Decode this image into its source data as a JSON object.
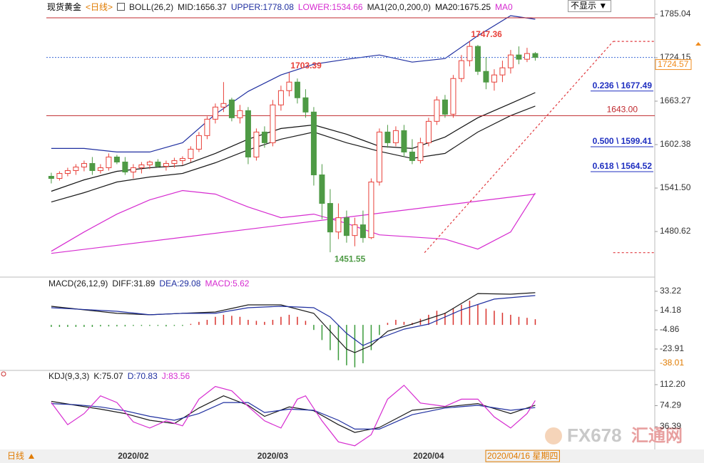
{
  "header": {
    "symbol": "现货黄金",
    "period_tag": "<日线>",
    "period": "日线",
    "button": "不显示"
  },
  "x_axis": {
    "xlim": [
      -0.6,
      73.57
    ],
    "xticks": [
      {
        "value": 10,
        "label": "2020/02"
      },
      {
        "value": 27,
        "label": "2020/03"
      },
      {
        "value": 46,
        "label": "2020/04"
      }
    ],
    "cursor_date": "2020/04/16 星期四"
  },
  "watermark": {
    "brand": "FX678",
    "name": "汇通网"
  },
  "chart_data": [
    {
      "type": "candlestick",
      "ylim": [
        1420.77,
        1795.02
      ],
      "yticks": [
        1785.04,
        1724.15,
        1663.27,
        1602.38,
        {
          "value": 1541.5,
          "label": "1541.50"
        },
        1480.62
      ],
      "up_color": "#e8413a",
      "down_color": "#4e9a45",
      "last_color": "#3c6ad6",
      "tag_color": "#f08c1e",
      "open": [
        1558,
        1555,
        1562,
        1566,
        1571,
        1576,
        1566,
        1570,
        1585,
        1578,
        1564,
        1570,
        1574,
        1578,
        1572,
        1576,
        1580,
        1583,
        1596,
        1615,
        1638,
        1655,
        1665,
        1640,
        1650,
        1585,
        1620,
        1605,
        1658,
        1678,
        1690,
        1668,
        1648,
        1560,
        1520,
        1480,
        1500,
        1475,
        1490,
        1472,
        1550,
        1620,
        1605,
        1622,
        1592,
        1580,
        1605,
        1635,
        1665,
        1645,
        1695,
        1720,
        1740,
        1705,
        1690,
        1700,
        1710,
        1728,
        1722,
        1730
      ],
      "high": [
        1563,
        1565,
        1570,
        1575,
        1580,
        1585,
        1575,
        1590,
        1588,
        1585,
        1575,
        1578,
        1580,
        1582,
        1580,
        1584,
        1586,
        1600,
        1620,
        1642,
        1660,
        1690,
        1668,
        1658,
        1655,
        1625,
        1628,
        1665,
        1685,
        1703.39,
        1695,
        1680,
        1655,
        1575,
        1540,
        1520,
        1510,
        1500,
        1510,
        1555,
        1625,
        1630,
        1628,
        1630,
        1610,
        1612,
        1640,
        1670,
        1672,
        1700,
        1728,
        1747.36,
        1742,
        1725,
        1708,
        1720,
        1735,
        1740,
        1738,
        1732
      ],
      "low": [
        1548,
        1552,
        1558,
        1560,
        1565,
        1560,
        1562,
        1566,
        1575,
        1560,
        1555,
        1562,
        1568,
        1570,
        1566,
        1570,
        1574,
        1578,
        1592,
        1610,
        1632,
        1648,
        1635,
        1632,
        1575,
        1580,
        1598,
        1600,
        1650,
        1670,
        1660,
        1640,
        1545,
        1498,
        1451.55,
        1470,
        1465,
        1460,
        1465,
        1470,
        1545,
        1598,
        1600,
        1585,
        1575,
        1576,
        1600,
        1630,
        1640,
        1640,
        1690,
        1712,
        1700,
        1680,
        1678,
        1690,
        1702,
        1715,
        1718,
        1720
      ],
      "close": [
        1555,
        1562,
        1566,
        1571,
        1576,
        1566,
        1570,
        1585,
        1578,
        1564,
        1570,
        1574,
        1578,
        1572,
        1576,
        1580,
        1583,
        1596,
        1615,
        1638,
        1655,
        1660,
        1640,
        1650,
        1585,
        1620,
        1605,
        1658,
        1678,
        1690,
        1668,
        1648,
        1560,
        1520,
        1480,
        1500,
        1475,
        1490,
        1472,
        1550,
        1620,
        1605,
        1622,
        1592,
        1580,
        1605,
        1635,
        1665,
        1645,
        1695,
        1720,
        1740,
        1705,
        1690,
        1700,
        1710,
        1728,
        1722,
        1730,
        1724.57
      ],
      "annotate": {
        "high": [
          29,
          51
        ],
        "low": [
          34
        ]
      },
      "indicators": [
        {
          "name": "BOLL(26,2)",
          "series": [
            {
              "name": "MID:1656.37",
              "color": "#1a1a1a",
              "x": [
                0,
                4,
                8,
                12,
                16,
                20,
                24,
                28,
                32,
                36,
                40,
                44,
                48,
                52,
                56,
                59
              ],
              "values": [
                1522,
                1535,
                1550,
                1557,
                1562,
                1577,
                1595,
                1610,
                1620,
                1605,
                1593,
                1583,
                1590,
                1620,
                1643,
                1656.37
              ]
            },
            {
              "name": "UPPER:1778.08",
              "color": "#1f2fa0",
              "x": [
                0,
                4,
                8,
                12,
                16,
                20,
                24,
                28,
                32,
                36,
                40,
                44,
                48,
                52,
                56,
                59
              ],
              "values": [
                1597,
                1597,
                1592,
                1592,
                1605,
                1645,
                1677,
                1700,
                1715,
                1722,
                1728,
                1718,
                1723,
                1755,
                1783,
                1778.08
              ]
            },
            {
              "name": "LOWER:1534.66",
              "color": "#d62bd0",
              "x": [
                0,
                4,
                8,
                12,
                16,
                20,
                24,
                28,
                32,
                36,
                40,
                44,
                48,
                52,
                56,
                59
              ],
              "values": [
                1453,
                1480,
                1505,
                1525,
                1538,
                1533,
                1515,
                1500,
                1505,
                1492,
                1476,
                1473,
                1470,
                1456,
                1480,
                1534.66
              ]
            }
          ]
        },
        {
          "name": "MA1(20,0,200,0)",
          "series": [
            {
              "name": "MA20:1675.25",
              "color": "#111111",
              "x": [
                0,
                4,
                8,
                12,
                16,
                20,
                24,
                28,
                32,
                36,
                40,
                44,
                48,
                52,
                56,
                59
              ],
              "values": [
                1537,
                1553,
                1565,
                1570,
                1573,
                1590,
                1610,
                1625,
                1630,
                1617,
                1600,
                1597,
                1613,
                1640,
                1660,
                1675.25
              ]
            },
            {
              "name": "MA0",
              "color": "#d62bd0",
              "x": [
                0,
                59
              ],
              "values": [
                1450,
                1533
              ]
            }
          ]
        }
      ],
      "hline_color": "#c0282d",
      "hlines": [
        {
          "value": 1780
        },
        {
          "value": 1643,
          "label": "1643.00"
        }
      ],
      "fib_color": "#1f2fc0",
      "fib": [
        {
          "label": "0.236 \\ 1677.49",
          "value": 1677.49
        },
        {
          "label": "0.500 \\ 1599.41",
          "value": 1599.41
        },
        {
          "label": "0.618 \\ 1564.52",
          "value": 1564.52
        }
      ],
      "trend_color": "#e0393e",
      "trendlines": [
        {
          "x": [
            45.5,
            68.5
          ],
          "values": [
            1451,
            1747
          ]
        },
        {
          "x": [
            68.5,
            73.5
          ],
          "values": [
            1747,
            1747
          ]
        },
        {
          "x": [
            68.5,
            73.5
          ],
          "values": [
            1451,
            1451
          ]
        }
      ]
    },
    {
      "type": "macd",
      "title": "MACD(26,12,9)",
      "ylim": [
        -43.65,
        45.21
      ],
      "yticks": [
        33.22,
        14.18,
        -4.86,
        -23.91
      ],
      "cursor_value": -38.01,
      "series": [
        {
          "name": "DIFF:31.89",
          "color": "#1a1a1a",
          "x": [
            0,
            8,
            12,
            16,
            20,
            24,
            28,
            32,
            34,
            36,
            37,
            39,
            41,
            44,
            48,
            52,
            56,
            59
          ],
          "values": [
            18.4,
            11.4,
            10,
            11.4,
            12.8,
            19.8,
            19.8,
            11.4,
            -6.3,
            -24,
            -27.4,
            -20.4,
            -6.3,
            0.8,
            11.4,
            31,
            30.4,
            31.89
          ]
        },
        {
          "name": "DEA:29.08",
          "color": "#1f2fa0",
          "x": [
            0,
            8,
            12,
            16,
            20,
            24,
            28,
            32,
            34,
            36,
            38,
            40,
            43,
            46,
            50,
            54,
            59
          ],
          "values": [
            17,
            13.5,
            10,
            11.4,
            11.4,
            17,
            18.4,
            17,
            7.8,
            -8.4,
            -20.4,
            -13.3,
            -4.2,
            0.8,
            14.9,
            25.5,
            29.08
          ]
        }
      ],
      "histogram": {
        "name": "MACD:5.62",
        "color": "#d62bd0",
        "up_color": "#d9322d",
        "down_color": "#3a9a3a",
        "values": [
          -2,
          -2,
          -2,
          -2,
          -2,
          -2,
          -1.5,
          -1.5,
          -1.5,
          -1.5,
          -1,
          -1,
          -1,
          -1,
          -1.5,
          -1,
          -1,
          1,
          3,
          5,
          8,
          10,
          9,
          8,
          5,
          4,
          3,
          5,
          8,
          10,
          8,
          4,
          -5,
          -15,
          -25,
          -35,
          -40,
          -42,
          -38,
          -25,
          -10,
          2,
          5,
          3,
          2,
          6,
          10,
          14,
          12,
          16,
          20,
          24,
          20,
          16,
          14,
          12,
          10,
          8,
          7,
          5.62
        ]
      }
    },
    {
      "type": "line",
      "title": "KDJ(9,3,3)",
      "ylim": [
        -3.4,
        135.3
      ],
      "yticks": [
        {
          "value": 112.2,
          "label": "112.20"
        },
        74.29,
        36.39
      ],
      "series": [
        {
          "name": "K:75.07",
          "color": "#1a1a1a",
          "x": [
            0,
            3,
            6,
            9,
            12,
            15,
            18,
            21,
            24,
            26,
            29,
            32,
            35,
            37,
            40,
            44,
            48,
            52,
            56,
            59
          ],
          "values": [
            82,
            75,
            68,
            60,
            48,
            42,
            70,
            92,
            75,
            55,
            72,
            65,
            40,
            26,
            35,
            66,
            72,
            78,
            60,
            75.07
          ]
        },
        {
          "name": "D:70.83",
          "color": "#1f2fa0",
          "x": [
            0,
            3,
            6,
            9,
            12,
            15,
            18,
            21,
            24,
            26,
            29,
            32,
            35,
            37,
            40,
            44,
            48,
            52,
            56,
            59
          ],
          "values": [
            78,
            76,
            72,
            65,
            55,
            48,
            60,
            80,
            80,
            62,
            68,
            66,
            48,
            32,
            32,
            58,
            70,
            75,
            66,
            70.83
          ]
        },
        {
          "name": "J:83.56",
          "color": "#d62bd0",
          "x": [
            0,
            2,
            4,
            6,
            8,
            10,
            12,
            14,
            16,
            18,
            20,
            22,
            24,
            26,
            28,
            30,
            31,
            33,
            35,
            37,
            39,
            41,
            43,
            45,
            48,
            50,
            52,
            54,
            56,
            58,
            59
          ],
          "values": [
            80,
            40,
            60,
            92,
            80,
            45,
            34,
            47,
            38,
            86,
            109,
            101,
            73,
            47,
            34,
            86,
            92,
            47,
            9,
            2,
            22,
            86,
            111,
            79,
            73,
            86,
            86,
            54,
            34,
            60,
            83.56
          ]
        }
      ]
    }
  ]
}
